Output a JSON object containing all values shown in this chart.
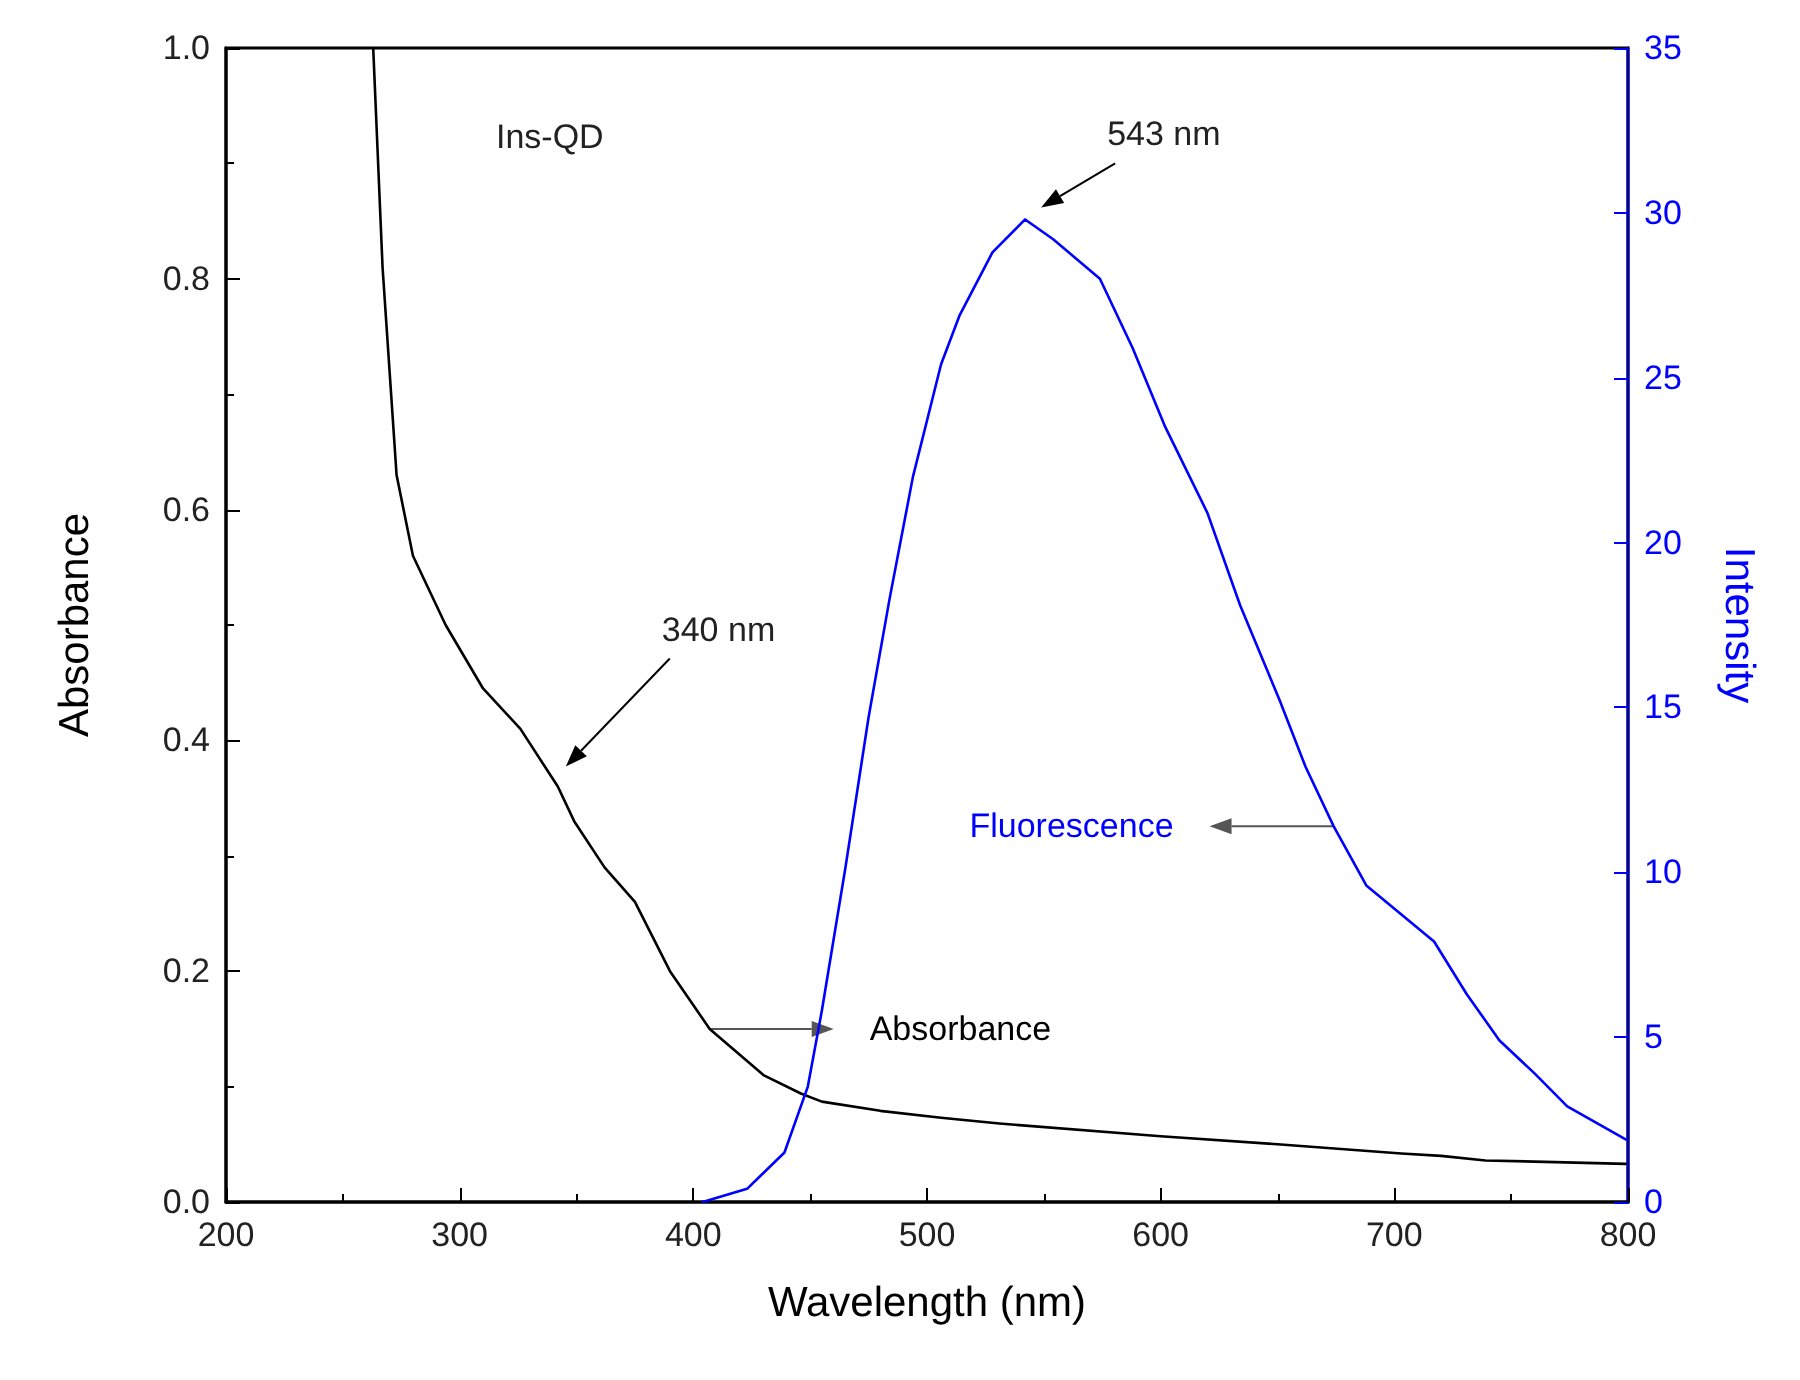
{
  "chart_data": {
    "type": "line",
    "xlabel": "Wavelength (nm)",
    "ylabel": "Absorbance",
    "y2label": "Intensity",
    "annotations": [
      "Ins-QD",
      "340 nm",
      "543 nm"
    ],
    "series": [
      {
        "name": "Absorbance",
        "color": "#000000",
        "x": [
          263,
          267,
          273,
          280,
          294,
          310,
          326,
          342,
          349,
          362,
          375,
          390,
          407,
          430,
          446,
          455,
          480,
          506,
          531,
          600,
          650,
          703,
          720,
          739,
          760,
          799
        ],
        "values": [
          1.0,
          0.81,
          0.63,
          0.56,
          0.5,
          0.445,
          0.41,
          0.36,
          0.33,
          0.29,
          0.26,
          0.2,
          0.15,
          0.11,
          0.094,
          0.087,
          0.079,
          0.073,
          0.068,
          0.057,
          0.05,
          0.042,
          0.04,
          0.036,
          0.035,
          0.033
        ]
      },
      {
        "name": "Fluorescence",
        "color": "#0000ff",
        "axis": "y2",
        "x": [
          404,
          423,
          439,
          449,
          455,
          465,
          475,
          484,
          494,
          506,
          514,
          528,
          542,
          554,
          574,
          588,
          602,
          620,
          634,
          651,
          662,
          674,
          688,
          717,
          731,
          745,
          760,
          774,
          799
        ],
        "values": [
          0,
          0.4,
          1.5,
          3.5,
          5.8,
          10.1,
          14.7,
          18.3,
          22.0,
          25.4,
          26.9,
          28.8,
          29.8,
          29.2,
          28.0,
          25.9,
          23.5,
          20.9,
          18.1,
          15.2,
          13.2,
          11.4,
          9.6,
          7.9,
          6.3,
          4.9,
          3.9,
          2.9,
          1.9
        ]
      }
    ],
    "xlim": [
      200,
      800
    ],
    "xticks": [
      200,
      300,
      400,
      500,
      600,
      700,
      800
    ],
    "ylim": [
      0,
      1
    ],
    "yticks": [
      {
        "value": 0,
        "label": "0.0"
      },
      0.2,
      0.4,
      0.6,
      0.8,
      {
        "value": 1,
        "label": "1.0"
      }
    ],
    "y2lim": [
      0,
      35
    ],
    "y2ticks": [
      0,
      5,
      10,
      15,
      20,
      25,
      30,
      35
    ],
    "legend": false,
    "grid": false,
    "marker": "none",
    "line_style": "solid"
  }
}
